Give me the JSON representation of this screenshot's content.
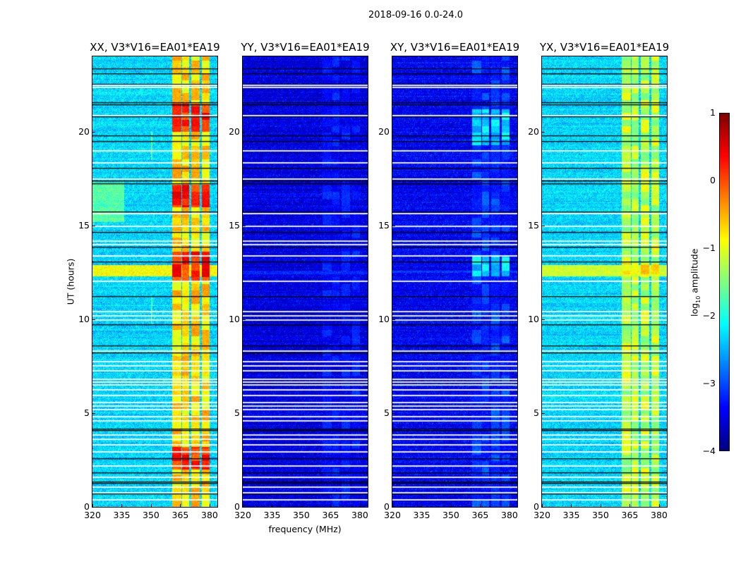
{
  "chart_data": {
    "type": "heatmap",
    "title": "2018-09-16 0.0-24.0",
    "xlabel": "frequency (MHz)",
    "ylabel": "UT (hours)",
    "xlim": [
      320,
      384
    ],
    "ylim": [
      0,
      24
    ],
    "xticks": [
      320,
      335,
      350,
      365,
      380
    ],
    "yticks": [
      0,
      5,
      10,
      15,
      20
    ],
    "colorbar": {
      "label_prefix": "log",
      "label_sub": "10",
      "label_suffix": " amplitude",
      "range": [
        -4,
        1
      ],
      "ticks": [
        "1",
        "0",
        "−1",
        "−2",
        "−3",
        "−4"
      ],
      "tick_values": [
        1,
        0,
        -1,
        -2,
        -3,
        -4
      ],
      "colormap": "jet"
    },
    "flagged_times_h": [
      22.5,
      22.4,
      20.9,
      19.0,
      18.35,
      17.5,
      15.65,
      15.0,
      14.2,
      14.0,
      13.4,
      12.05,
      10.45,
      10.2,
      10.0,
      8.33,
      7.77,
      7.55,
      7.28,
      6.83,
      6.7,
      6.55,
      6.27,
      5.97,
      5.6,
      5.4,
      5.22,
      4.84,
      4.62,
      3.87,
      3.64,
      3.34,
      2.97,
      2.21,
      1.61,
      1.09,
      0.79,
      0.41
    ],
    "zero_times_h": [
      23.35,
      23.1,
      22.55,
      21.55,
      21.43,
      20.8,
      19.78,
      19.48,
      18.05,
      17.38,
      17.23,
      15.73,
      14.64,
      13.85,
      13.06,
      11.22,
      9.72,
      8.6,
      8.22,
      4.17,
      4.09,
      2.59,
      1.84,
      1.35,
      1.28,
      0.71
    ],
    "rfi_subbands_mhz": [
      [
        360.5,
        365.2
      ],
      [
        365.9,
        369.5
      ],
      [
        370.6,
        374.9
      ],
      [
        376.0,
        380.0
      ]
    ],
    "panels": [
      {
        "title": "XX, V3*V16=EA01*EA19",
        "base_level": -2.3,
        "band_level": -0.7,
        "band_hot_times_h": [
          [
            12.0,
            13.6
          ],
          [
            16.0,
            17.2
          ],
          [
            20.0,
            21.5
          ],
          [
            2.0,
            3.2
          ]
        ],
        "band_hot_level": 0.2,
        "broadband_times_h": [
          12.3,
          12.9
        ],
        "broadband_level": -0.9
      },
      {
        "title": "YY, V3*V16=EA01*EA19",
        "base_level": -3.5,
        "band_level": -3.45,
        "band_hot_times_h": [],
        "band_hot_level": -3.3,
        "broadband_times_h": [
          12.4,
          12.6
        ],
        "broadband_level": -3.2
      },
      {
        "title": "XY, V3*V16=EA01*EA19",
        "base_level": -3.4,
        "band_level": -3.2,
        "band_hot_times_h": [
          [
            12.3,
            13.4
          ],
          [
            19.3,
            21.2
          ]
        ],
        "band_hot_level": -2.3,
        "broadband_times_h": [
          12.5,
          12.6
        ],
        "broadband_level": -3.1
      },
      {
        "title": "YX, V3*V16=EA01*EA19",
        "base_level": -2.3,
        "band_level": -1.2,
        "band_hot_times_h": [
          [
            12.4,
            13.0
          ]
        ],
        "band_hot_level": -0.8,
        "broadband_times_h": [
          12.3,
          12.9
        ],
        "broadband_level": -1.1
      }
    ]
  }
}
